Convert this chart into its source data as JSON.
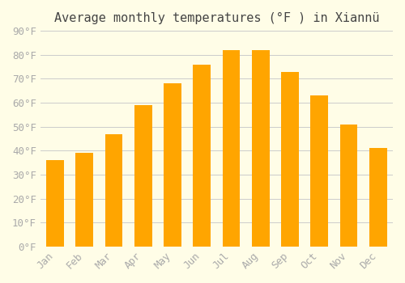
{
  "title": "Average monthly temperatures (°F ) in Xiannü",
  "months": [
    "Jan",
    "Feb",
    "Mar",
    "Apr",
    "May",
    "Jun",
    "Jul",
    "Aug",
    "Sep",
    "Oct",
    "Nov",
    "Dec"
  ],
  "values": [
    36,
    39,
    47,
    59,
    68,
    76,
    82,
    82,
    73,
    63,
    51,
    41
  ],
  "bar_color": "#FFA500",
  "bar_edge_color": "#FFB733",
  "background_color": "#FFFDE7",
  "grid_color": "#CCCCCC",
  "ylim": [
    0,
    90
  ],
  "yticks": [
    0,
    10,
    20,
    30,
    40,
    50,
    60,
    70,
    80,
    90
  ],
  "title_fontsize": 11,
  "tick_fontsize": 9,
  "tick_label_color": "#AAAAAA"
}
